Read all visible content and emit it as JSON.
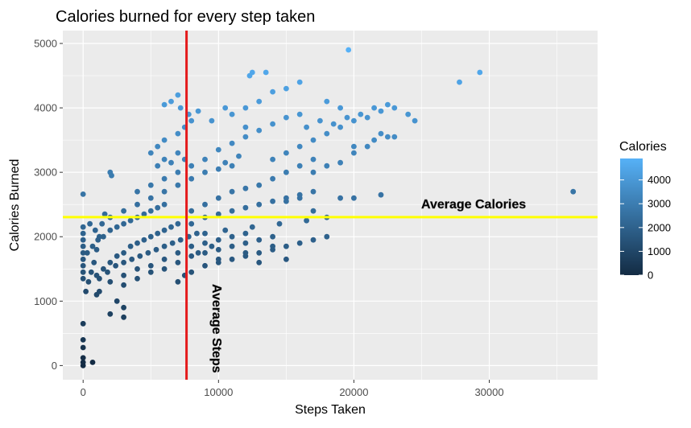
{
  "chart_data": {
    "type": "scatter",
    "title": "Calories burned for every step taken",
    "xlabel": "Steps Taken",
    "ylabel": "Calories Burned",
    "xlim": [
      -1500,
      38000
    ],
    "ylim": [
      -220,
      5200
    ],
    "x_ticks": [
      0,
      10000,
      20000,
      30000
    ],
    "x_tick_labels": [
      "0",
      "10000",
      "20000",
      "30000"
    ],
    "y_ticks": [
      0,
      1000,
      2000,
      3000,
      4000,
      5000
    ],
    "y_tick_labels": [
      "0",
      "1000",
      "2000",
      "3000",
      "4000",
      "5000"
    ],
    "grid": true,
    "colors": {
      "panel": "#EBEBEB",
      "grid": "#FFFFFF",
      "low": "#132B43",
      "high": "#56B1F7",
      "avg_steps_line": "#E41A1C",
      "avg_calories_line": "#FFFF00"
    },
    "reference_lines": {
      "avg_steps": {
        "x": 7638,
        "label": "Average Steps"
      },
      "avg_calories": {
        "y": 2304,
        "label": "Average Calories"
      }
    },
    "legend": {
      "title": "Calories",
      "position": "right",
      "range": [
        0,
        4900
      ],
      "ticks": [
        0,
        1000,
        2000,
        3000,
        4000
      ],
      "tick_labels": [
        "0",
        "1000",
        "2000",
        "3000",
        "4000"
      ]
    },
    "points": [
      [
        0,
        0
      ],
      [
        0,
        50
      ],
      [
        0,
        120
      ],
      [
        0,
        280
      ],
      [
        0,
        400
      ],
      [
        0,
        650
      ],
      [
        0,
        1350
      ],
      [
        0,
        1450
      ],
      [
        0,
        1550
      ],
      [
        0,
        1650
      ],
      [
        0,
        1750
      ],
      [
        0,
        1850
      ],
      [
        0,
        1950
      ],
      [
        0,
        2050
      ],
      [
        0,
        2150
      ],
      [
        0,
        2660
      ],
      [
        700,
        50
      ],
      [
        200,
        1150
      ],
      [
        400,
        1300
      ],
      [
        600,
        1450
      ],
      [
        800,
        1600
      ],
      [
        1000,
        1800
      ],
      [
        1200,
        2000
      ],
      [
        1400,
        2200
      ],
      [
        1600,
        2350
      ],
      [
        500,
        2200
      ],
      [
        900,
        2100
      ],
      [
        1100,
        1950
      ],
      [
        300,
        1750
      ],
      [
        700,
        1850
      ],
      [
        1000,
        1400
      ],
      [
        1500,
        1500
      ],
      [
        2000,
        1600
      ],
      [
        2500,
        1700
      ],
      [
        3000,
        1750
      ],
      [
        3500,
        1850
      ],
      [
        4000,
        1900
      ],
      [
        4500,
        1950
      ],
      [
        5000,
        2000
      ],
      [
        5500,
        2050
      ],
      [
        6000,
        2100
      ],
      [
        6500,
        2150
      ],
      [
        7000,
        2200
      ],
      [
        1200,
        1350
      ],
      [
        1800,
        1450
      ],
      [
        2400,
        1550
      ],
      [
        3000,
        1600
      ],
      [
        3600,
        1650
      ],
      [
        4200,
        1700
      ],
      [
        4800,
        1750
      ],
      [
        5400,
        1800
      ],
      [
        6000,
        1850
      ],
      [
        6600,
        1900
      ],
      [
        7200,
        1950
      ],
      [
        7800,
        2000
      ],
      [
        8400,
        2050
      ],
      [
        2000,
        1300
      ],
      [
        3000,
        1400
      ],
      [
        4000,
        1500
      ],
      [
        5000,
        1550
      ],
      [
        6000,
        1650
      ],
      [
        7000,
        1750
      ],
      [
        8000,
        1850
      ],
      [
        9000,
        1900
      ],
      [
        10000,
        1950
      ],
      [
        11000,
        2000
      ],
      [
        12000,
        2050
      ],
      [
        3000,
        1250
      ],
      [
        4000,
        1350
      ],
      [
        5000,
        1450
      ],
      [
        6000,
        1500
      ],
      [
        7000,
        1600
      ],
      [
        8000,
        1700
      ],
      [
        9000,
        1750
      ],
      [
        10000,
        1800
      ],
      [
        11000,
        1850
      ],
      [
        12000,
        1900
      ],
      [
        13000,
        1950
      ],
      [
        14000,
        2000
      ],
      [
        9000,
        1550
      ],
      [
        10000,
        1600
      ],
      [
        11000,
        1650
      ],
      [
        12000,
        1700
      ],
      [
        13000,
        1750
      ],
      [
        14000,
        1800
      ],
      [
        15000,
        1850
      ],
      [
        16000,
        1900
      ],
      [
        17000,
        1950
      ],
      [
        18000,
        2000
      ],
      [
        10000,
        1650
      ],
      [
        12000,
        1750
      ],
      [
        14000,
        1850
      ],
      [
        13000,
        1600
      ],
      [
        15000,
        1650
      ],
      [
        8500,
        1750
      ],
      [
        9500,
        1850
      ],
      [
        1500,
        2000
      ],
      [
        2000,
        2100
      ],
      [
        2500,
        2150
      ],
      [
        3000,
        2200
      ],
      [
        3500,
        2250
      ],
      [
        4000,
        2300
      ],
      [
        4500,
        2350
      ],
      [
        5000,
        2400
      ],
      [
        5500,
        2450
      ],
      [
        6000,
        2500
      ],
      [
        2000,
        2300
      ],
      [
        3000,
        2400
      ],
      [
        4000,
        2500
      ],
      [
        5000,
        2600
      ],
      [
        6000,
        2700
      ],
      [
        7000,
        2800
      ],
      [
        8000,
        2900
      ],
      [
        9000,
        3000
      ],
      [
        10000,
        3050
      ],
      [
        11000,
        3100
      ],
      [
        4000,
        2700
      ],
      [
        5000,
        2800
      ],
      [
        6000,
        2900
      ],
      [
        7000,
        3000
      ],
      [
        8000,
        3100
      ],
      [
        9000,
        3200
      ],
      [
        7500,
        3200
      ],
      [
        6500,
        3150
      ],
      [
        8000,
        2400
      ],
      [
        9000,
        2500
      ],
      [
        10000,
        2600
      ],
      [
        11000,
        2700
      ],
      [
        12000,
        2750
      ],
      [
        13000,
        2800
      ],
      [
        14000,
        2900
      ],
      [
        15000,
        3000
      ],
      [
        16000,
        3100
      ],
      [
        17000,
        3200
      ],
      [
        8000,
        2200
      ],
      [
        9000,
        2300
      ],
      [
        10000,
        2350
      ],
      [
        11000,
        2400
      ],
      [
        12000,
        2450
      ],
      [
        13000,
        2500
      ],
      [
        14000,
        2550
      ],
      [
        15000,
        2600
      ],
      [
        16000,
        2650
      ],
      [
        17000,
        2700
      ],
      [
        9000,
        2050
      ],
      [
        10500,
        2100
      ],
      [
        12500,
        2150
      ],
      [
        14500,
        2200
      ],
      [
        16500,
        2250
      ],
      [
        18000,
        2300
      ],
      [
        2000,
        3000
      ],
      [
        2100,
        2950
      ],
      [
        5000,
        3300
      ],
      [
        5500,
        3400
      ],
      [
        6000,
        3500
      ],
      [
        7000,
        3600
      ],
      [
        7500,
        3700
      ],
      [
        8000,
        3800
      ],
      [
        7000,
        3300
      ],
      [
        6000,
        3200
      ],
      [
        5500,
        3100
      ],
      [
        10000,
        3350
      ],
      [
        11000,
        3450
      ],
      [
        12000,
        3550
      ],
      [
        13000,
        3650
      ],
      [
        14000,
        3750
      ],
      [
        15000,
        3850
      ],
      [
        16000,
        3900
      ],
      [
        11500,
        3250
      ],
      [
        10500,
        3150
      ],
      [
        12000,
        4000
      ],
      [
        13000,
        4100
      ],
      [
        14000,
        4250
      ],
      [
        15000,
        4300
      ],
      [
        16000,
        4400
      ],
      [
        12500,
        4550
      ],
      [
        13500,
        4550
      ],
      [
        12300,
        4500
      ],
      [
        14000,
        3200
      ],
      [
        15000,
        3300
      ],
      [
        16000,
        3400
      ],
      [
        17000,
        3500
      ],
      [
        18000,
        3600
      ],
      [
        19000,
        3700
      ],
      [
        20000,
        3800
      ],
      [
        21000,
        3850
      ],
      [
        22000,
        3950
      ],
      [
        23000,
        4000
      ],
      [
        24000,
        3900
      ],
      [
        24500,
        3800
      ],
      [
        16500,
        3700
      ],
      [
        17500,
        3800
      ],
      [
        18500,
        3750
      ],
      [
        19500,
        3850
      ],
      [
        20500,
        3900
      ],
      [
        21500,
        4000
      ],
      [
        22500,
        4050
      ],
      [
        18000,
        4100
      ],
      [
        19000,
        4000
      ],
      [
        15000,
        2550
      ],
      [
        16000,
        2600
      ],
      [
        17000,
        2400
      ],
      [
        19000,
        2600
      ],
      [
        20000,
        2600
      ],
      [
        22000,
        2650
      ],
      [
        17000,
        3000
      ],
      [
        18000,
        3100
      ],
      [
        19000,
        3150
      ],
      [
        20000,
        3300
      ],
      [
        21000,
        3400
      ],
      [
        21500,
        3500
      ],
      [
        22000,
        3600
      ],
      [
        23000,
        3550
      ],
      [
        22500,
        3550
      ],
      [
        20000,
        3400
      ],
      [
        19600,
        4900
      ],
      [
        27800,
        4400
      ],
      [
        29300,
        4550
      ],
      [
        36200,
        2700
      ],
      [
        6000,
        4050
      ],
      [
        6500,
        4100
      ],
      [
        7000,
        4200
      ],
      [
        7200,
        4000
      ],
      [
        7800,
        3900
      ],
      [
        8500,
        3950
      ],
      [
        9500,
        3800
      ],
      [
        10500,
        4000
      ],
      [
        11000,
        3900
      ],
      [
        12000,
        3700
      ],
      [
        7000,
        1300
      ],
      [
        7500,
        1400
      ],
      [
        8000,
        1450
      ],
      [
        2500,
        1000
      ],
      [
        3000,
        900
      ],
      [
        2000,
        800
      ],
      [
        3000,
        750
      ],
      [
        1000,
        1100
      ],
      [
        1200,
        1150
      ]
    ]
  }
}
